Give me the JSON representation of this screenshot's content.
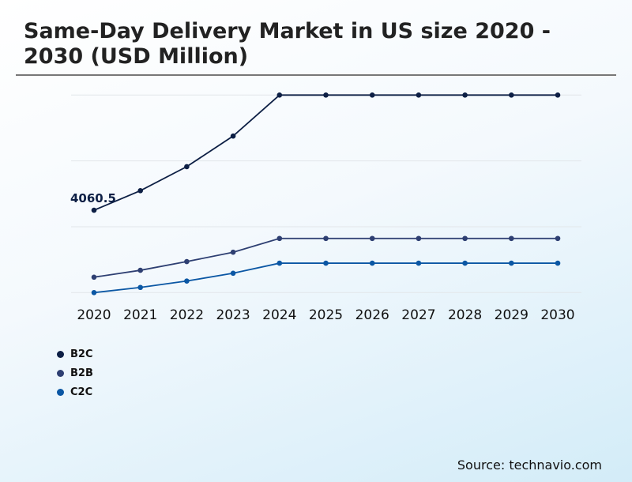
{
  "title": "Same-Day Delivery Market in US size 2020 - 2030 (USD Million)",
  "source": "Source: technavio.com",
  "chart_data": {
    "type": "line",
    "title": "Same-Day Delivery Market in US size 2020 - 2030 (USD Million)",
    "x": [
      "2020",
      "2021",
      "2022",
      "2023",
      "2024",
      "2025",
      "2026",
      "2027",
      "2028",
      "2029",
      "2030"
    ],
    "ylim": [
      0,
      9740
    ],
    "grid": true,
    "legend_position": "bottom-left",
    "annotations": [
      {
        "series": "B2C",
        "x": "2020",
        "text": "4060.5"
      }
    ],
    "series": [
      {
        "name": "B2C",
        "color": "#0d1f45",
        "values": [
          4060.5,
          5025,
          6210,
          7720,
          9740,
          9740,
          9740,
          9740,
          9740,
          9740,
          9740
        ]
      },
      {
        "name": "B2B",
        "color": "#2e3f72",
        "values": [
          760,
          1100,
          1530,
          1990,
          2670,
          2670,
          2670,
          2670,
          2670,
          2670,
          2670
        ]
      },
      {
        "name": "C2C",
        "color": "#0b57a4",
        "values": [
          0,
          255,
          570,
          955,
          1450,
          1450,
          1450,
          1450,
          1450,
          1450,
          1450
        ]
      }
    ]
  }
}
